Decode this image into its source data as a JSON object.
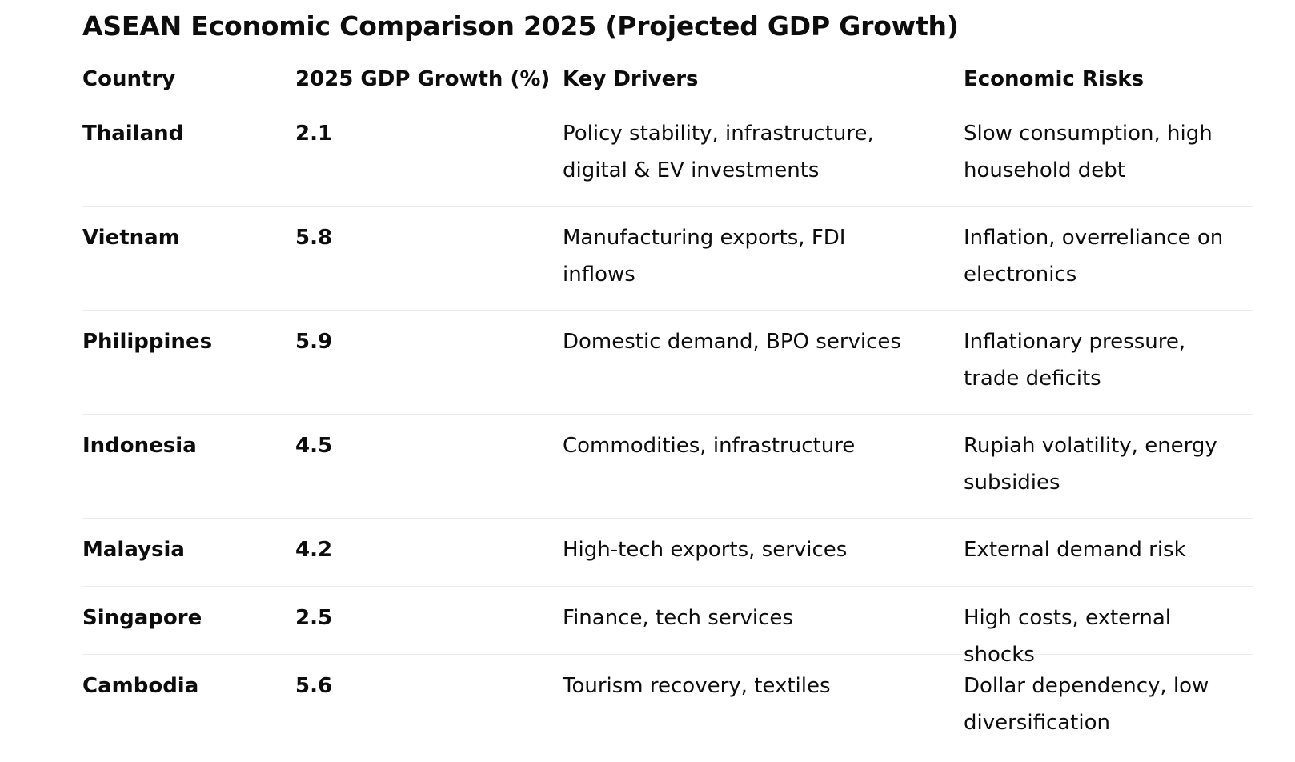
{
  "title": "ASEAN Economic Comparison 2025 (Projected GDP Growth)",
  "columns": [
    "Country",
    "2025 GDP Growth (%)",
    "Key Drivers",
    "Economic Risks"
  ],
  "rows": [
    {
      "country": "Thailand",
      "growth": "2.1",
      "drivers": "Policy stability, infrastructure, digital & EV investments",
      "risks": "Slow consumption, high household debt"
    },
    {
      "country": "Vietnam",
      "growth": "5.8",
      "drivers": "Manufacturing exports, FDI inflows",
      "risks": "Inflation, overreliance on electronics"
    },
    {
      "country": "Philippines",
      "growth": "5.9",
      "drivers": "Domestic demand, BPO services",
      "risks": "Inflationary pressure, trade deficits"
    },
    {
      "country": "Indonesia",
      "growth": "4.5",
      "drivers": "Commodities, infrastructure",
      "risks": "Rupiah volatility, energy subsidies"
    },
    {
      "country": "Malaysia",
      "growth": "4.2",
      "drivers": "High-tech exports, services",
      "risks": "External demand risk"
    },
    {
      "country": "Singapore",
      "growth": "2.5",
      "drivers": "Finance, tech services",
      "risks": "High costs, external shocks"
    },
    {
      "country": "Cambodia",
      "growth": "5.6",
      "drivers": "Tourism recovery, textiles",
      "risks": "Dollar dependency, low diversification"
    }
  ]
}
